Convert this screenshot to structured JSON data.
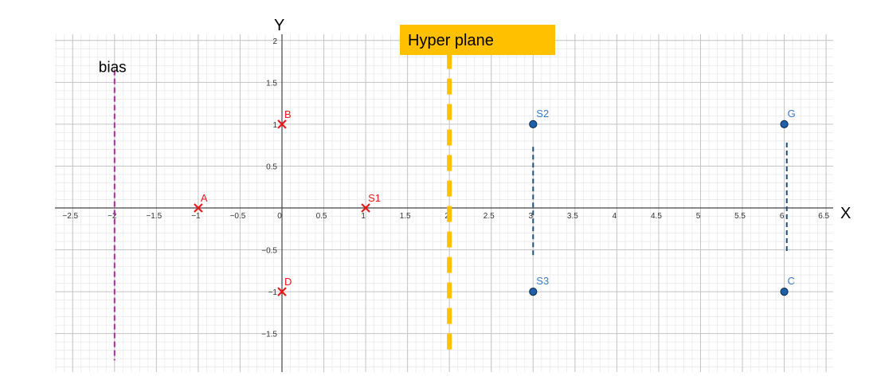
{
  "chart_data": {
    "type": "scatter",
    "xlabel": "X",
    "ylabel": "Y",
    "xlim": [
      -2.75,
      6.55
    ],
    "ylim": [
      -1.95,
      2.1
    ],
    "grid": true,
    "x_ticks": [
      -2.5,
      -2,
      -1.5,
      -1,
      -0.5,
      0,
      0.5,
      1,
      1.5,
      2,
      2.5,
      3,
      3.5,
      4,
      4.5,
      5,
      5.5,
      6,
      6.5
    ],
    "x_tick_labels": [
      "−2.5",
      "−2",
      "−1.5",
      "−1",
      "−0.5",
      "0",
      "0.5",
      "1",
      "1.5",
      "2",
      "2.5",
      "3",
      "3.5",
      "4",
      "4.5",
      "5",
      "5.5",
      "6",
      "6.5"
    ],
    "y_ticks": [
      -1.5,
      -1,
      -0.5,
      0.5,
      1,
      1.5,
      2
    ],
    "y_tick_labels": [
      "−1.5",
      "−1",
      "−0.5",
      "0.5",
      "1",
      "1.5",
      "2"
    ],
    "series": [
      {
        "marker": "x",
        "color": "#e8191b",
        "points": [
          {
            "label": "A",
            "x": -1,
            "y": 0
          },
          {
            "label": "B",
            "x": 0,
            "y": 1
          },
          {
            "label": "S1",
            "x": 1,
            "y": 0
          },
          {
            "label": "D",
            "x": 0,
            "y": -1
          }
        ]
      },
      {
        "marker": "circle",
        "color": "#1f5fa8",
        "label_color": "#3a7cc4",
        "points": [
          {
            "label": "S2",
            "x": 3,
            "y": 1
          },
          {
            "label": "S3",
            "x": 3,
            "y": -1
          },
          {
            "label": "G",
            "x": 6,
            "y": 1
          },
          {
            "label": "C",
            "x": 6,
            "y": -1
          }
        ]
      }
    ],
    "annotations": {
      "hyperplane": {
        "label": "Hyper plane",
        "x": 2,
        "y_from": -1.7,
        "y_to": 1.85,
        "color": "#ffc000"
      },
      "bias": {
        "label": "bias",
        "x": -2,
        "y_from": -1.82,
        "y_to": 1.65,
        "color": "#b4269e"
      },
      "margins": [
        {
          "x": 3,
          "y_from": -0.57,
          "y_to": 0.73,
          "color": "#1f4e79"
        },
        {
          "x": 6.03,
          "y_from": -0.52,
          "y_to": 0.78,
          "color": "#1f4e79"
        }
      ]
    }
  }
}
